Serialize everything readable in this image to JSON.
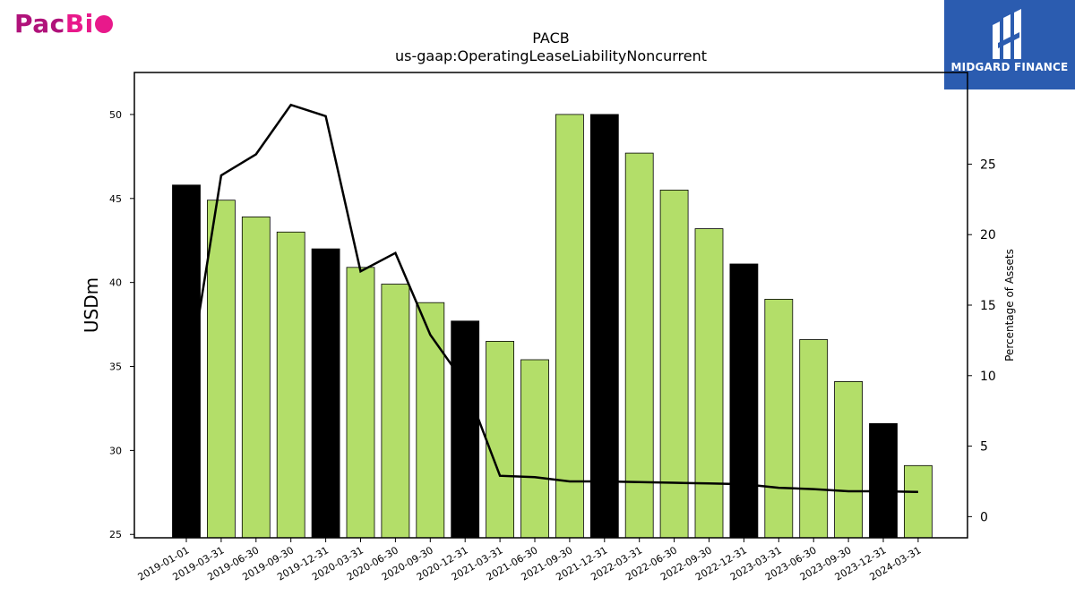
{
  "logos": {
    "left": {
      "text_a": "Pac",
      "text_b": "Bi"
    },
    "right": {
      "name": "MIDGARD FINANCE"
    }
  },
  "chart_data": {
    "type": "bar",
    "title": "PACB",
    "subtitle": "us-gaap:OperatingLeaseLiabilityNoncurrent",
    "ylabel": "USDm",
    "y2label": "Percentage of Assets",
    "ylim": [
      24.8,
      52.5
    ],
    "y2lim": [
      -1.5,
      31.5
    ],
    "yticks": [
      25,
      30,
      35,
      40,
      45,
      50
    ],
    "y2ticks": [
      0,
      5,
      10,
      15,
      20,
      25
    ],
    "categories": [
      "2019-01-01",
      "2019-03-31",
      "2019-06-30",
      "2019-09-30",
      "2019-12-31",
      "2020-03-31",
      "2020-06-30",
      "2020-09-30",
      "2020-12-31",
      "2021-03-31",
      "2021-06-30",
      "2021-09-30",
      "2021-12-31",
      "2022-03-31",
      "2022-06-30",
      "2022-09-30",
      "2022-12-31",
      "2023-03-31",
      "2023-06-30",
      "2023-09-30",
      "2023-12-31",
      "2024-03-31"
    ],
    "series": [
      {
        "type": "bar",
        "values": [
          45.8,
          44.9,
          43.9,
          43.0,
          42.0,
          40.9,
          39.9,
          38.8,
          37.7,
          36.5,
          35.4,
          50.0,
          50.0,
          47.7,
          45.5,
          43.2,
          41.1,
          39.0,
          36.6,
          34.1,
          31.6,
          29.1
        ],
        "highlight": [
          true,
          false,
          false,
          false,
          true,
          false,
          false,
          false,
          true,
          false,
          false,
          false,
          true,
          false,
          false,
          false,
          true,
          false,
          false,
          false,
          true,
          false
        ]
      },
      {
        "type": "line",
        "axis": "right",
        "values": [
          8.7,
          24.2,
          25.7,
          29.2,
          28.4,
          17.4,
          18.7,
          12.9,
          9.4,
          2.9,
          2.8,
          2.5,
          2.5,
          2.45,
          2.4,
          2.35,
          2.3,
          2.05,
          1.95,
          1.8,
          1.8,
          1.75
        ]
      }
    ],
    "colors": {
      "bar": "#b3de69",
      "bar_highlight": "#000000",
      "line": "#000000",
      "bar_edge": "#000000"
    },
    "grid": false,
    "legend": "none"
  }
}
